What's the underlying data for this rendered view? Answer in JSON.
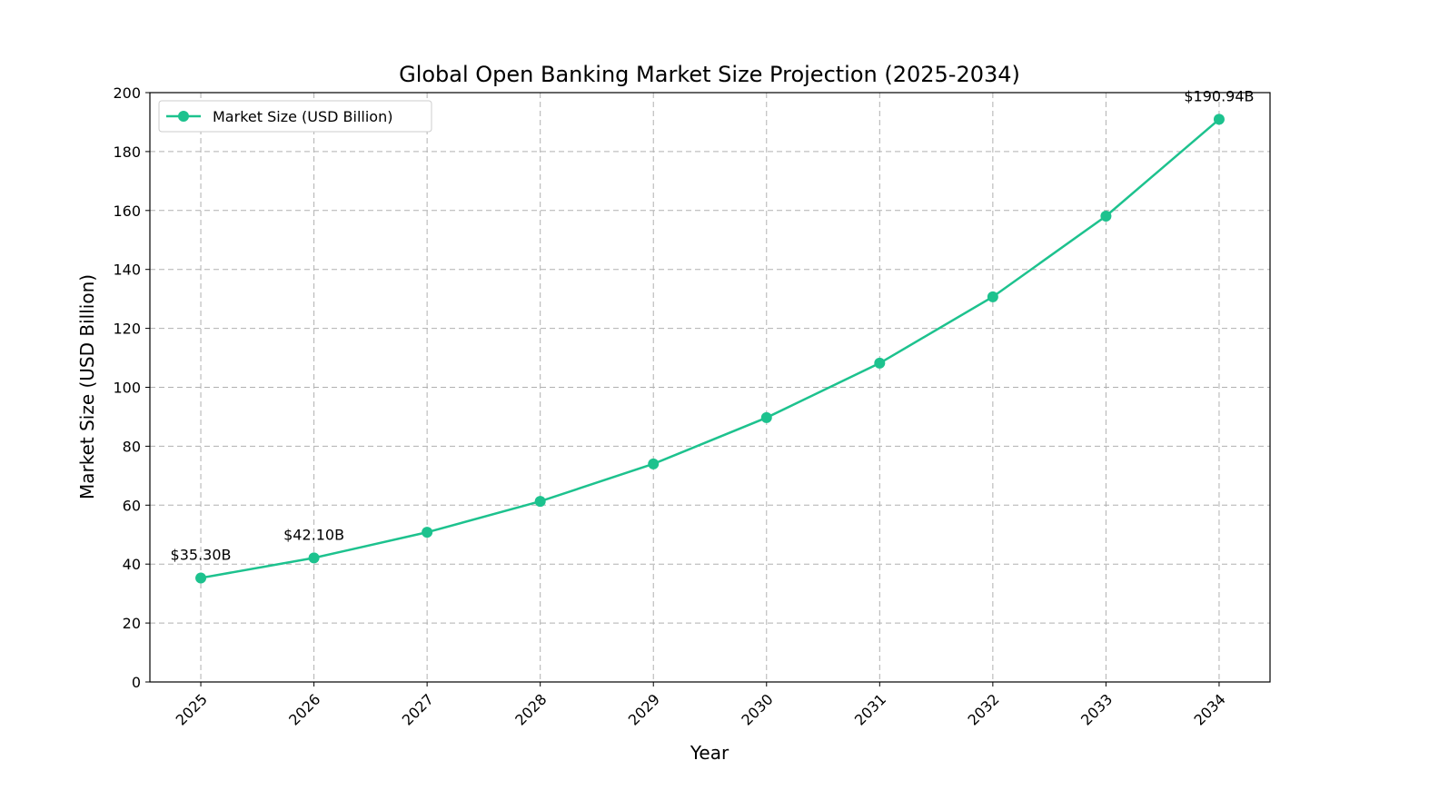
{
  "chart_data": {
    "type": "line",
    "title": "Global Open Banking Market Size Projection (2025-2034)",
    "xlabel": "Year",
    "ylabel": "Market Size (USD Billion)",
    "x": [
      2025,
      2026,
      2027,
      2028,
      2029,
      2030,
      2031,
      2032,
      2033,
      2034
    ],
    "series": [
      {
        "name": "Market Size (USD Billion)",
        "values": [
          35.3,
          42.1,
          50.8,
          61.3,
          74.0,
          89.7,
          108.2,
          130.7,
          158.1,
          190.94
        ],
        "color": "#1dc28e"
      }
    ],
    "annotations": [
      {
        "x": 2025,
        "text": "$35.30B"
      },
      {
        "x": 2026,
        "text": "$42.10B"
      },
      {
        "x": 2034,
        "text": "$190.94B"
      }
    ],
    "xlim": [
      2024.55,
      2034.45
    ],
    "ylim": [
      0,
      200
    ],
    "yticks": [
      0,
      20,
      40,
      60,
      80,
      100,
      120,
      140,
      160,
      180,
      200
    ],
    "xtick_rotation": 45,
    "grid": true,
    "legend": "upper-left"
  }
}
